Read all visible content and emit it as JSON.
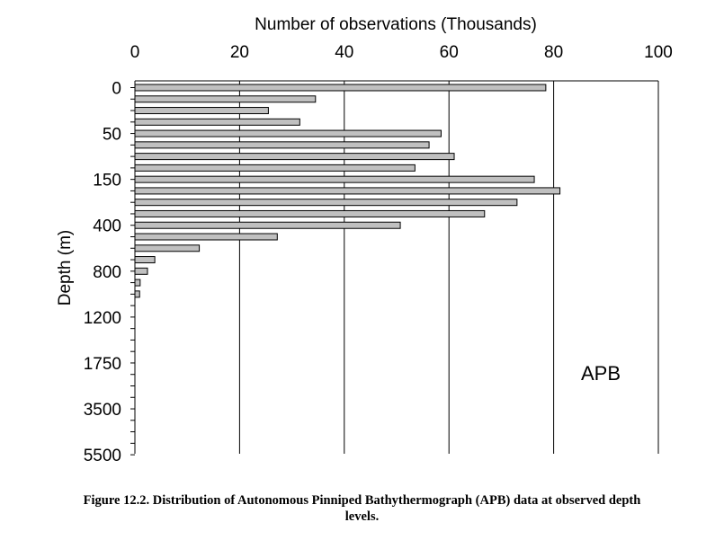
{
  "chart_data": {
    "type": "bar",
    "orientation": "horizontal",
    "xlabel": "Number of observations (Thousands)",
    "ylabel": "Depth (m)",
    "xlim": [
      0,
      100
    ],
    "x_ticks": [
      0,
      20,
      40,
      60,
      80,
      100
    ],
    "y_tick_labels": [
      {
        "index": 0,
        "label": "0"
      },
      {
        "index": 4,
        "label": "50"
      },
      {
        "index": 8,
        "label": "150"
      },
      {
        "index": 12,
        "label": "400"
      },
      {
        "index": 16,
        "label": "800"
      },
      {
        "index": 20,
        "label": "1200"
      },
      {
        "index": 24,
        "label": "1750"
      },
      {
        "index": 28,
        "label": "3500"
      },
      {
        "index": 32,
        "label": "5500"
      }
    ],
    "level_count": 33,
    "values": [
      78.5,
      34.5,
      25.5,
      31.5,
      58.5,
      56.2,
      61.0,
      53.5,
      76.3,
      81.2,
      73.0,
      66.8,
      50.7,
      27.2,
      12.3,
      3.8,
      2.4,
      1.0,
      0.9,
      0,
      0,
      0,
      0,
      0,
      0,
      0,
      0,
      0,
      0,
      0,
      0,
      0,
      0
    ],
    "annotation": "APB",
    "grid": "vertical",
    "bar_color": "#c0c0c0"
  },
  "caption": {
    "line1": "Figure 12.2. Distribution of Autonomous Pinniped Bathythermograph (APB) data at observed depth",
    "line2": "levels."
  }
}
